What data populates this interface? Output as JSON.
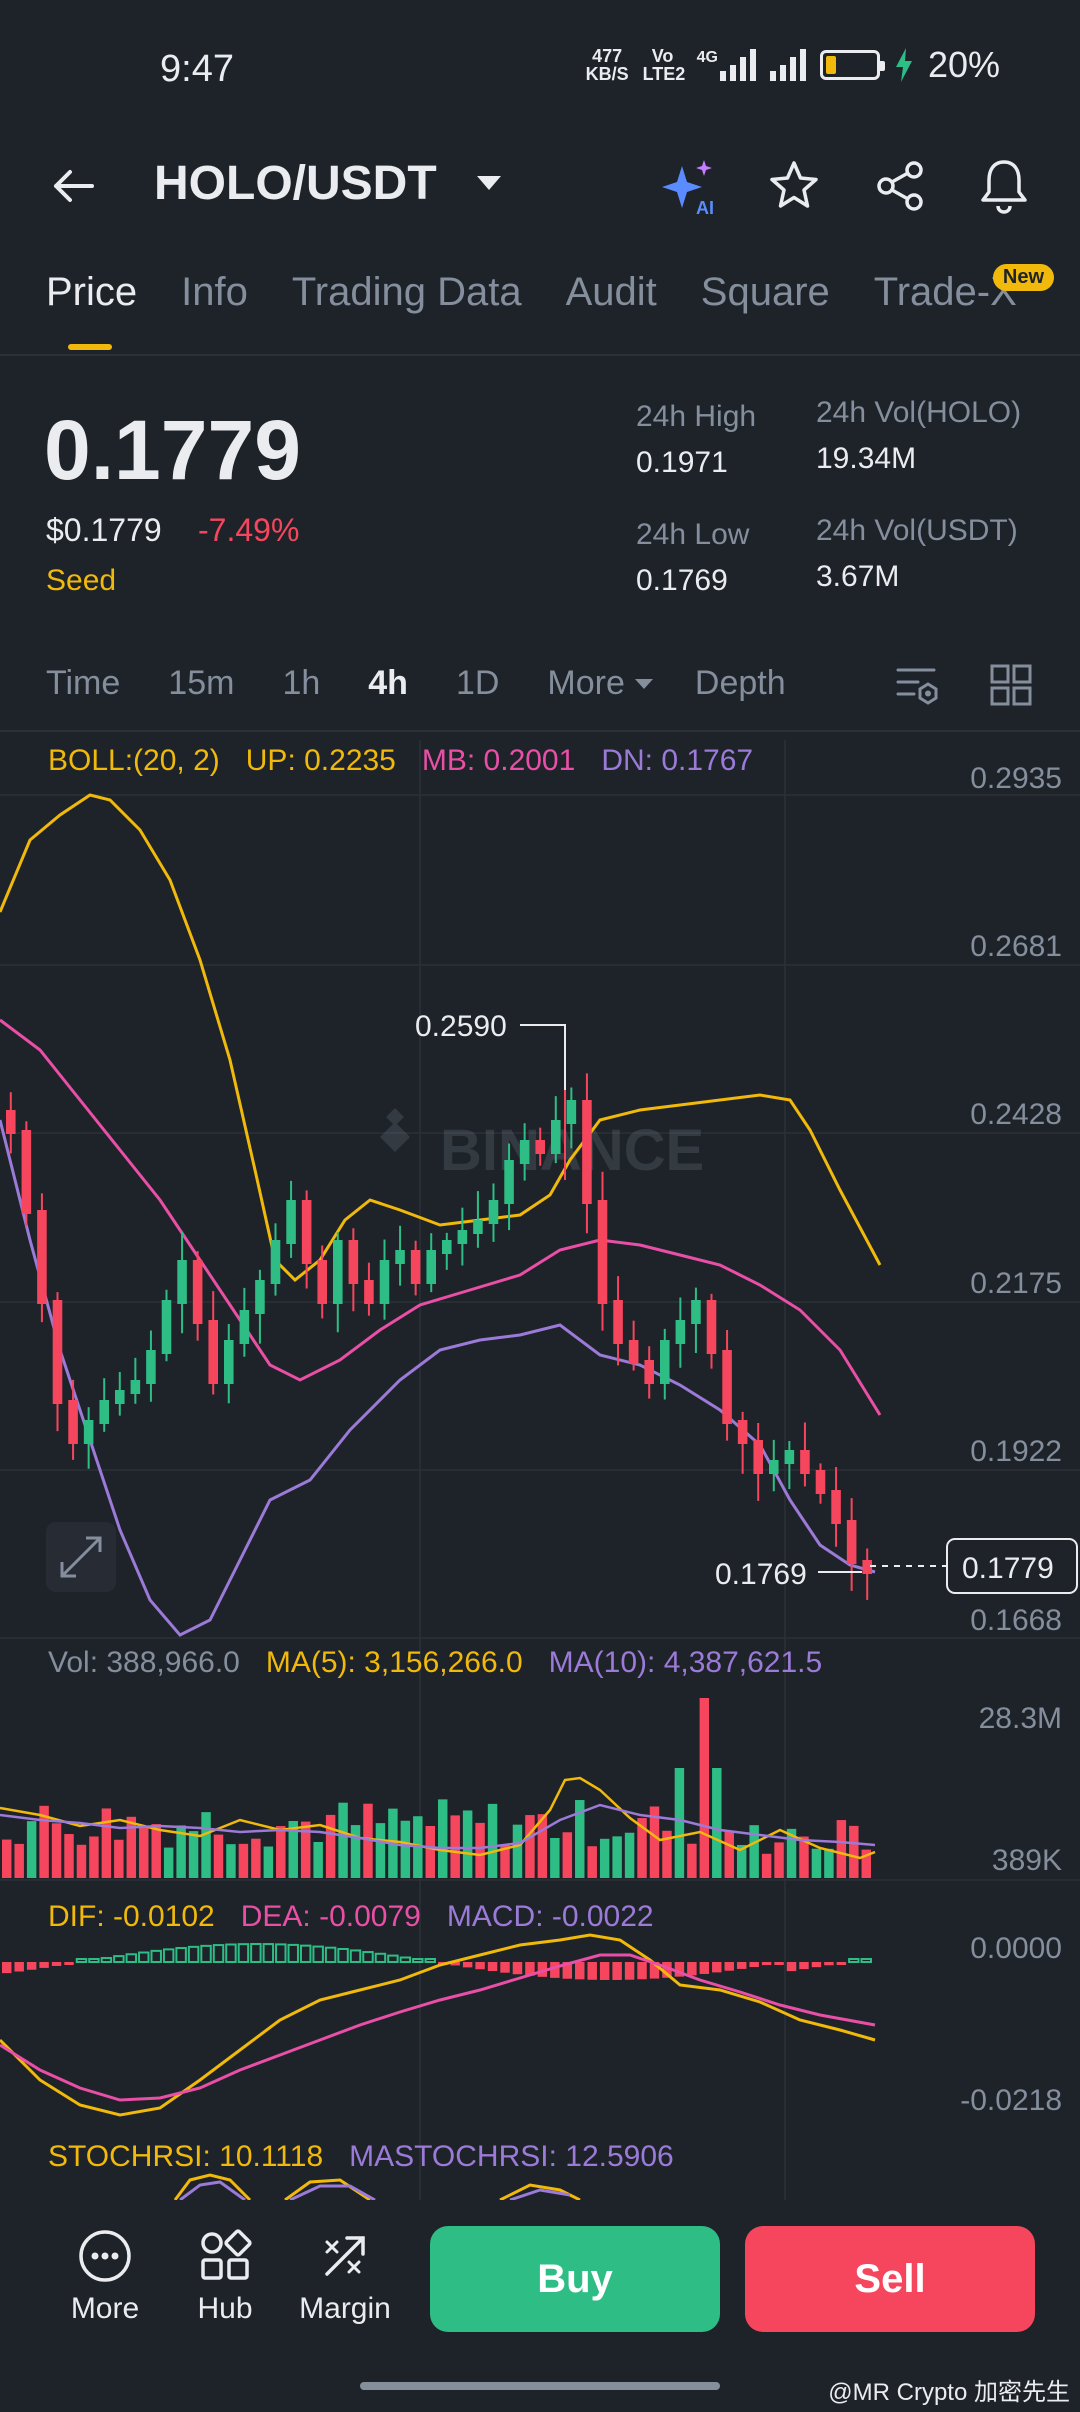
{
  "status": {
    "time": "9:47",
    "net_speed_value": "477",
    "net_speed_unit": "KB/S",
    "volte": "Vo LTE2",
    "network": "4G",
    "battery": "20%"
  },
  "header": {
    "pair": "HOLO/USDT"
  },
  "tabs": [
    "Price",
    "Info",
    "Trading Data",
    "Audit",
    "Square",
    "Trade-X"
  ],
  "new_badge": "New",
  "price": {
    "last": "0.1779",
    "usd": "$0.1779",
    "change": "-7.49%",
    "tag": "Seed"
  },
  "stats": {
    "high_label": "24h High",
    "high_value": "0.1971",
    "low_label": "24h Low",
    "low_value": "0.1769",
    "vol_base_label": "24h Vol(HOLO)",
    "vol_base_value": "19.34M",
    "vol_quote_label": "24h Vol(USDT)",
    "vol_quote_value": "3.67M"
  },
  "intervals": [
    "Time",
    "15m",
    "1h",
    "4h",
    "1D",
    "More",
    "Depth"
  ],
  "active_interval": "4h",
  "boll": {
    "label": "BOLL:(20, 2)",
    "up": "UP: 0.2235",
    "mb": "MB: 0.2001",
    "dn": "DN: 0.1767"
  },
  "price_axis": [
    "0.2935",
    "0.2681",
    "0.2428",
    "0.2175",
    "0.1922",
    "0.1668"
  ],
  "chart_annotations": {
    "high_marker": "0.2590",
    "low_marker": "0.1769",
    "current_price": "0.1779",
    "watermark": "BINANCE"
  },
  "volume": {
    "vol": "Vol: 388,966.0",
    "ma5": "MA(5): 3,156,266.0",
    "ma10": "MA(10): 4,387,621.5",
    "axis_top": "28.3M",
    "axis_bottom": "389K"
  },
  "macd": {
    "dif": "DIF: -0.0102",
    "dea": "DEA: -0.0079",
    "macd": "MACD: -0.0022",
    "axis_top": "0.0000",
    "axis_bottom": "-0.0218"
  },
  "stochrsi": {
    "stochrsi": "STOCHRSI: 10.1118",
    "mastochrsi": "MASTOCHRSI: 12.5906"
  },
  "bottom": {
    "more": "More",
    "hub": "Hub",
    "margin": "Margin",
    "buy": "Buy",
    "sell": "Sell"
  },
  "watermark_footer": "@MR Crypto 加密先生",
  "colors": {
    "up": "#2ebd85",
    "down": "#f6465d",
    "accent": "#f0b90b",
    "boll_mb": "#e94fa6",
    "boll_dn": "#9b7ad8"
  }
}
